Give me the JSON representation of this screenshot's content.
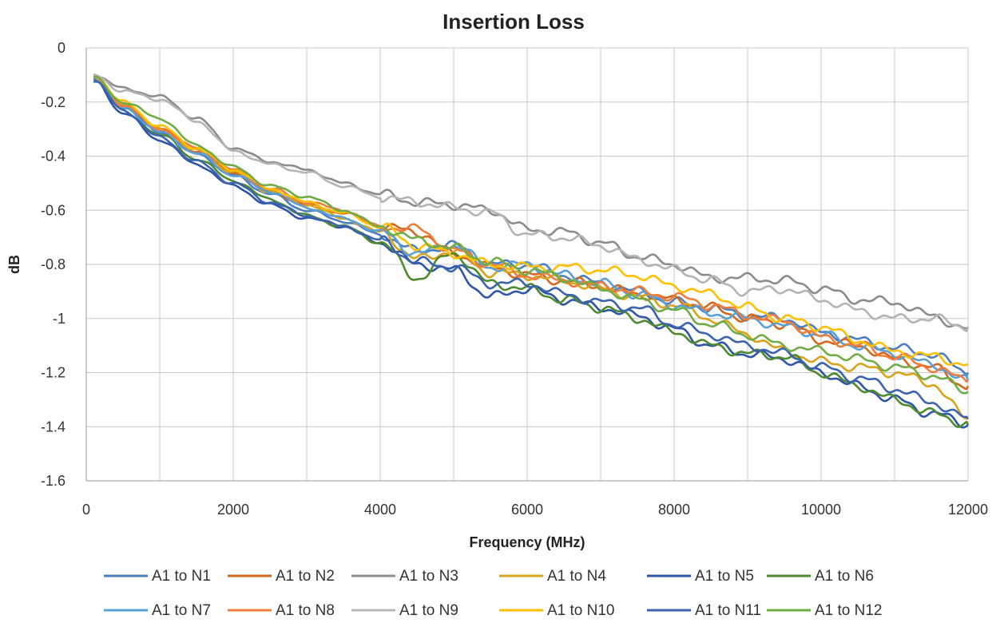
{
  "chart_data": {
    "type": "line",
    "title": "Insertion Loss",
    "xlabel": "Frequency (MHz)",
    "ylabel": "dB",
    "xlim": [
      0,
      12000
    ],
    "ylim": [
      -1.6,
      0
    ],
    "x_ticks": [
      0,
      2000,
      4000,
      6000,
      8000,
      10000,
      12000
    ],
    "x_ticks_labels": [
      "0",
      "2000",
      "4000",
      "6000",
      "8000",
      "10000",
      "12000"
    ],
    "y_ticks": [
      0,
      -0.2,
      -0.4,
      -0.6,
      -0.8,
      -1,
      -1.2,
      -1.4,
      -1.6
    ],
    "y_ticks_labels": [
      "0",
      "-0.2",
      "-0.4",
      "-0.6",
      "-0.8",
      "-1",
      "-1.2",
      "-1.4",
      "-1.6"
    ],
    "grid": true,
    "legend_position": "bottom",
    "x": [
      100,
      500,
      1000,
      1500,
      2000,
      2500,
      3000,
      3500,
      4000,
      4500,
      5000,
      5500,
      6000,
      6500,
      7000,
      7500,
      8000,
      8500,
      9000,
      9500,
      10000,
      10500,
      11000,
      11500,
      12000
    ],
    "series": [
      {
        "name": "A1 to N1",
        "color": "#4e7fbf",
        "values": [
          -0.11,
          -0.22,
          -0.31,
          -0.39,
          -0.47,
          -0.54,
          -0.6,
          -0.64,
          -0.69,
          -0.75,
          -0.73,
          -0.8,
          -0.8,
          -0.84,
          -0.87,
          -0.9,
          -0.94,
          -0.96,
          -0.99,
          -1.0,
          -1.05,
          -1.08,
          -1.11,
          -1.13,
          -1.2
        ]
      },
      {
        "name": "A1 to N2",
        "color": "#d2691e",
        "values": [
          -0.11,
          -0.21,
          -0.3,
          -0.38,
          -0.46,
          -0.53,
          -0.58,
          -0.61,
          -0.66,
          -0.68,
          -0.76,
          -0.81,
          -0.84,
          -0.86,
          -0.88,
          -0.91,
          -0.93,
          -0.96,
          -1.0,
          -1.02,
          -1.08,
          -1.1,
          -1.15,
          -1.18,
          -1.25
        ]
      },
      {
        "name": "A1 to N3",
        "color": "#8c8c8c",
        "values": [
          -0.1,
          -0.15,
          -0.18,
          -0.26,
          -0.37,
          -0.42,
          -0.45,
          -0.5,
          -0.54,
          -0.57,
          -0.58,
          -0.6,
          -0.67,
          -0.68,
          -0.72,
          -0.77,
          -0.8,
          -0.85,
          -0.85,
          -0.86,
          -0.89,
          -0.93,
          -0.94,
          -0.99,
          -1.04
        ]
      },
      {
        "name": "A1 to N4",
        "color": "#d9a31a",
        "values": [
          -0.11,
          -0.21,
          -0.3,
          -0.38,
          -0.46,
          -0.53,
          -0.58,
          -0.63,
          -0.68,
          -0.78,
          -0.75,
          -0.83,
          -0.84,
          -0.86,
          -0.89,
          -0.92,
          -0.95,
          -1.0,
          -1.06,
          -1.12,
          -1.16,
          -1.18,
          -1.2,
          -1.24,
          -1.37
        ]
      },
      {
        "name": "A1 to N5",
        "color": "#2f55a6",
        "values": [
          -0.12,
          -0.24,
          -0.34,
          -0.43,
          -0.51,
          -0.58,
          -0.63,
          -0.66,
          -0.72,
          -0.8,
          -0.82,
          -0.92,
          -0.89,
          -0.93,
          -0.96,
          -0.99,
          -1.04,
          -1.1,
          -1.13,
          -1.15,
          -1.2,
          -1.25,
          -1.3,
          -1.35,
          -1.39
        ]
      },
      {
        "name": "A1 to N6",
        "color": "#4f8a2e",
        "values": [
          -0.11,
          -0.22,
          -0.32,
          -0.41,
          -0.49,
          -0.56,
          -0.62,
          -0.66,
          -0.72,
          -0.85,
          -0.76,
          -0.87,
          -0.89,
          -0.93,
          -0.96,
          -1.0,
          -1.05,
          -1.1,
          -1.13,
          -1.14,
          -1.2,
          -1.25,
          -1.3,
          -1.35,
          -1.39
        ]
      },
      {
        "name": "A1 to N7",
        "color": "#5aa0d6",
        "values": [
          -0.11,
          -0.22,
          -0.31,
          -0.39,
          -0.47,
          -0.53,
          -0.59,
          -0.63,
          -0.68,
          -0.76,
          -0.73,
          -0.81,
          -0.8,
          -0.84,
          -0.87,
          -0.91,
          -0.95,
          -0.98,
          -1.0,
          -1.03,
          -1.06,
          -1.1,
          -1.13,
          -1.17,
          -1.23
        ]
      },
      {
        "name": "A1 to N8",
        "color": "#ef7d3c",
        "values": [
          -0.11,
          -0.21,
          -0.3,
          -0.37,
          -0.45,
          -0.52,
          -0.57,
          -0.6,
          -0.66,
          -0.67,
          -0.75,
          -0.8,
          -0.84,
          -0.86,
          -0.88,
          -0.9,
          -0.92,
          -0.95,
          -0.99,
          -1.01,
          -1.07,
          -1.1,
          -1.14,
          -1.18,
          -1.23
        ]
      },
      {
        "name": "A1 to N9",
        "color": "#b4b4b4",
        "values": [
          -0.1,
          -0.16,
          -0.19,
          -0.27,
          -0.38,
          -0.43,
          -0.46,
          -0.51,
          -0.55,
          -0.57,
          -0.59,
          -0.61,
          -0.69,
          -0.7,
          -0.73,
          -0.78,
          -0.82,
          -0.86,
          -0.9,
          -0.89,
          -0.93,
          -0.97,
          -1.0,
          -1.0,
          -1.03
        ]
      },
      {
        "name": "A1 to N10",
        "color": "#ffc000",
        "values": [
          -0.1,
          -0.2,
          -0.29,
          -0.37,
          -0.45,
          -0.52,
          -0.57,
          -0.61,
          -0.66,
          -0.73,
          -0.76,
          -0.8,
          -0.81,
          -0.81,
          -0.82,
          -0.84,
          -0.88,
          -0.91,
          -0.96,
          -1.0,
          -1.03,
          -1.08,
          -1.12,
          -1.14,
          -1.17
        ]
      },
      {
        "name": "A1 to N11",
        "color": "#3b64ad",
        "values": [
          -0.12,
          -0.23,
          -0.33,
          -0.42,
          -0.5,
          -0.57,
          -0.62,
          -0.66,
          -0.71,
          -0.79,
          -0.81,
          -0.87,
          -0.87,
          -0.91,
          -0.94,
          -0.96,
          -1.02,
          -1.06,
          -1.1,
          -1.13,
          -1.18,
          -1.22,
          -1.26,
          -1.31,
          -1.37
        ]
      },
      {
        "name": "A1 to N12",
        "color": "#70ad47",
        "values": [
          -0.11,
          -0.2,
          -0.26,
          -0.36,
          -0.44,
          -0.51,
          -0.55,
          -0.6,
          -0.66,
          -0.71,
          -0.74,
          -0.79,
          -0.82,
          -0.85,
          -0.89,
          -0.93,
          -0.97,
          -1.02,
          -1.06,
          -1.1,
          -1.12,
          -1.15,
          -1.18,
          -1.21,
          -1.27
        ]
      }
    ]
  }
}
